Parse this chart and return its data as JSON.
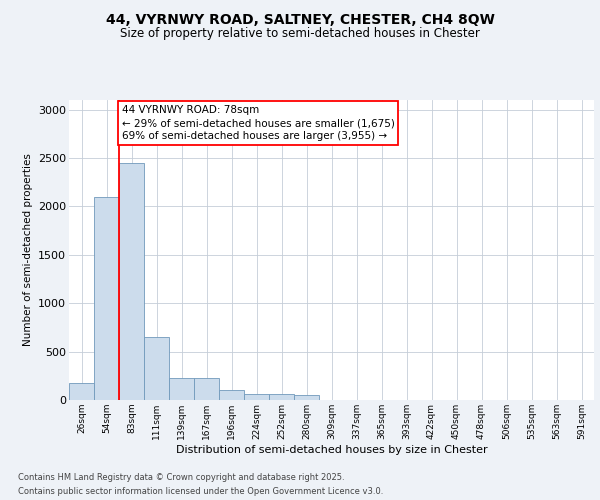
{
  "title_line1": "44, VYRNWY ROAD, SALTNEY, CHESTER, CH4 8QW",
  "title_line2": "Size of property relative to semi-detached houses in Chester",
  "xlabel": "Distribution of semi-detached houses by size in Chester",
  "ylabel": "Number of semi-detached properties",
  "bins": [
    "26sqm",
    "54sqm",
    "83sqm",
    "111sqm",
    "139sqm",
    "167sqm",
    "196sqm",
    "224sqm",
    "252sqm",
    "280sqm",
    "309sqm",
    "337sqm",
    "365sqm",
    "393sqm",
    "422sqm",
    "450sqm",
    "478sqm",
    "506sqm",
    "535sqm",
    "563sqm",
    "591sqm"
  ],
  "values": [
    175,
    2100,
    2450,
    650,
    225,
    225,
    100,
    65,
    65,
    55,
    0,
    0,
    0,
    0,
    0,
    0,
    0,
    0,
    0,
    0,
    0
  ],
  "bar_color": "#ccdcec",
  "bar_edge_color": "#7099bb",
  "annotation_box_text": "44 VYRNWY ROAD: 78sqm\n← 29% of semi-detached houses are smaller (1,675)\n69% of semi-detached houses are larger (3,955) →",
  "vline_pos": 1.5,
  "ylim": [
    0,
    3100
  ],
  "yticks": [
    0,
    500,
    1000,
    1500,
    2000,
    2500,
    3000
  ],
  "footer_line1": "Contains HM Land Registry data © Crown copyright and database right 2025.",
  "footer_line2": "Contains public sector information licensed under the Open Government Licence v3.0.",
  "background_color": "#eef2f7",
  "plot_background_color": "#ffffff",
  "grid_color": "#c5cdd8",
  "title_fontsize": 10,
  "subtitle_fontsize": 8.5,
  "ann_fontsize": 7.5,
  "xlabel_fontsize": 8,
  "ylabel_fontsize": 7.5,
  "ytick_fontsize": 8,
  "xtick_fontsize": 6.5,
  "footer_fontsize": 6
}
